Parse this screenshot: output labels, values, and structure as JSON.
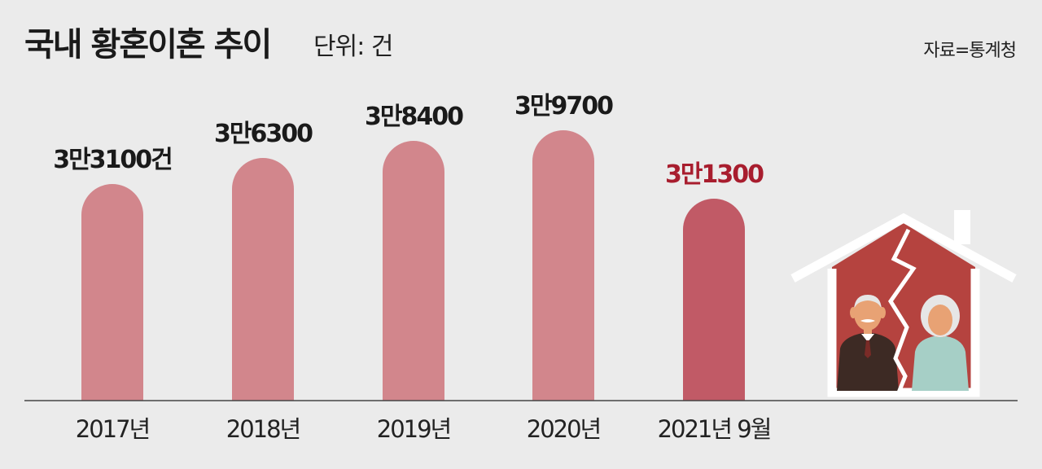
{
  "header": {
    "title": "국내 황혼이혼 추이",
    "unit": "단위: 건",
    "source": "자료=통계청"
  },
  "colors": {
    "bar": "#d2868c",
    "bar_highlight": "#c15a66",
    "label": "#1a1a1a",
    "label_highlight": "#a81d2e",
    "house": "#b5433f"
  },
  "chart_data": {
    "type": "bar",
    "title": "국내 황혼이혼 추이",
    "unit": "건",
    "categories": [
      "2017년",
      "2018년",
      "2019년",
      "2020년",
      "2021년 9월"
    ],
    "values": [
      33100,
      36300,
      38400,
      39700,
      31300
    ],
    "value_labels": [
      "3만3100건",
      "3만6300",
      "3만8400",
      "3만9700",
      "3만1300"
    ],
    "highlight_index": 4,
    "grid": false,
    "legend": "none"
  },
  "illustration": {
    "icon": "broken-house-elderly-couple-icon"
  }
}
